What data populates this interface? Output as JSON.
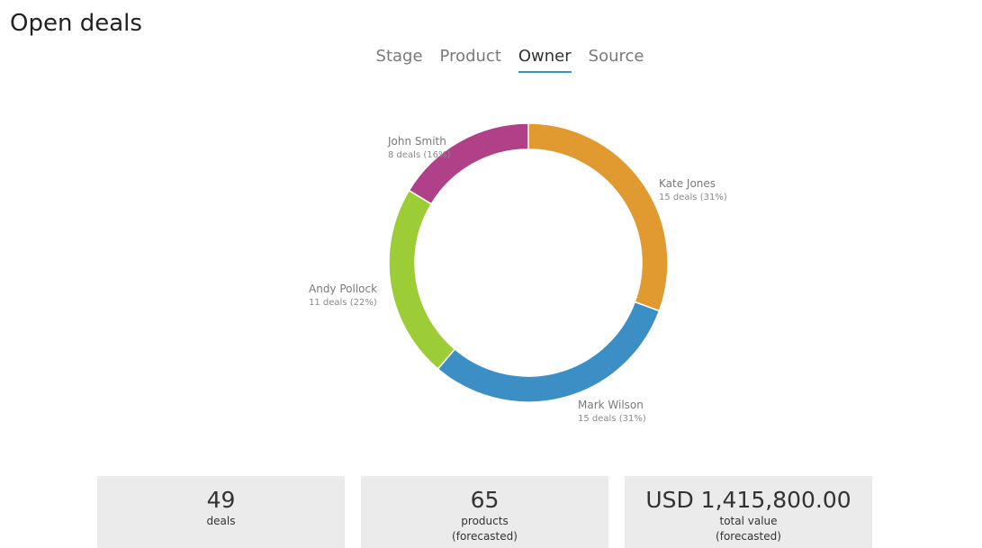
{
  "title": "Open deals",
  "tabs": [
    {
      "label": "Stage",
      "active": false
    },
    {
      "label": "Product",
      "active": false
    },
    {
      "label": "Owner",
      "active": true
    },
    {
      "label": "Source",
      "active": false
    }
  ],
  "chart_data": {
    "type": "pie",
    "style": "donut",
    "slices": [
      {
        "name": "Kate Jones",
        "label": "15 deals (31%)",
        "value": 15,
        "color": "#e09a30"
      },
      {
        "name": "Mark Wilson",
        "label": "15 deals (31%)",
        "value": 15,
        "color": "#3b8fc4"
      },
      {
        "name": "Andy Pollock",
        "label": "11 deals (22%)",
        "value": 11,
        "color": "#9ccc36"
      },
      {
        "name": "John Smith",
        "label": "8 deals (16%)",
        "value": 8,
        "color": "#b04189"
      }
    ]
  },
  "stats": [
    {
      "value": "49",
      "label": "deals",
      "label2": ""
    },
    {
      "value": "65",
      "label": "products",
      "label2": "(forecasted)"
    },
    {
      "value": "USD 1,415,800.00",
      "label": "total value",
      "label2": "(forecasted)"
    }
  ]
}
